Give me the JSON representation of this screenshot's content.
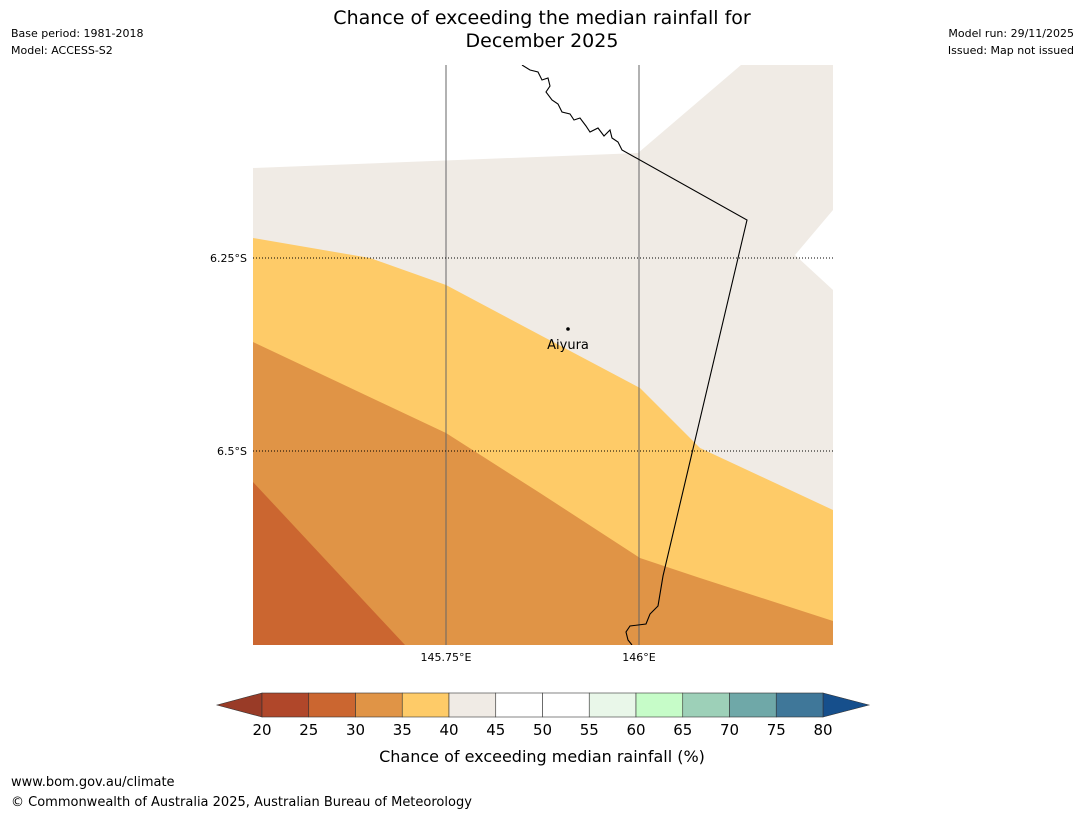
{
  "header": {
    "title_line1": "Chance of exceeding the median rainfall for",
    "title_line2": "December 2025",
    "base_period": "Base period: 1981-2018",
    "model": "Model: ACCESS-S2",
    "model_run": "Model run: 29/11/2025",
    "issued": "Issued: Map not issued"
  },
  "map": {
    "latitude_labels": [
      "6.25°S",
      "6.5°S"
    ],
    "longitude_labels": [
      "145.75°E",
      "146°E"
    ],
    "place": {
      "name": "Aiyura"
    },
    "zone_colors": {
      "c25_30": "#cb6630",
      "c30_35": "#e09446",
      "c35_40": "#fecb68",
      "c40_45": "#f0ebe5"
    }
  },
  "legend": {
    "title": "Chance of exceeding median rainfall (%)",
    "tick_labels": [
      "20",
      "25",
      "30",
      "35",
      "40",
      "45",
      "50",
      "55",
      "60",
      "65",
      "70",
      "75",
      "80"
    ],
    "colors": [
      "#b0472a",
      "#cb6630",
      "#e09446",
      "#fecb68",
      "#f0ebe5",
      "#ffffff",
      "#ffffff",
      "#e9f7e9",
      "#c6fcc8",
      "#9dd0b8",
      "#6fa8a8",
      "#3f7799"
    ],
    "under_color": "#993b27",
    "over_color": "#164f8c"
  },
  "footer": {
    "url": "www.bom.gov.au/climate",
    "copyright": "© Commonwealth of Australia 2025, Australian Bureau of Meteorology"
  }
}
